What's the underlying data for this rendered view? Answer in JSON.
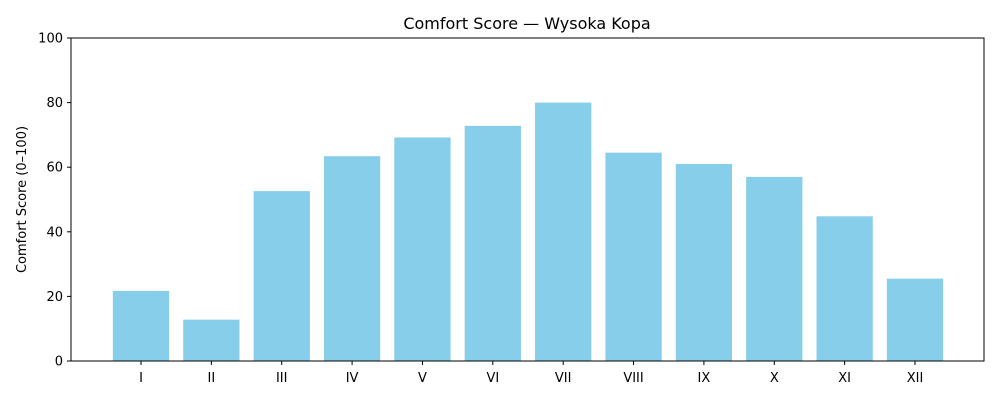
{
  "chart_data": {
    "type": "bar",
    "title": "Comfort Score — Wysoka Kopa",
    "xlabel": "",
    "ylabel": "Comfort Score (0–100)",
    "categories": [
      "I",
      "II",
      "III",
      "IV",
      "V",
      "VI",
      "VII",
      "VIII",
      "IX",
      "X",
      "XI",
      "XII"
    ],
    "values": [
      21.7,
      12.8,
      52.6,
      63.4,
      69.2,
      72.8,
      80.0,
      64.5,
      61.0,
      57.0,
      44.8,
      25.5
    ],
    "ylim": [
      0,
      100
    ],
    "yticks": [
      0,
      20,
      40,
      60,
      80,
      100
    ],
    "bar_color": "#87ceeb",
    "grid": false,
    "legend": "none"
  }
}
